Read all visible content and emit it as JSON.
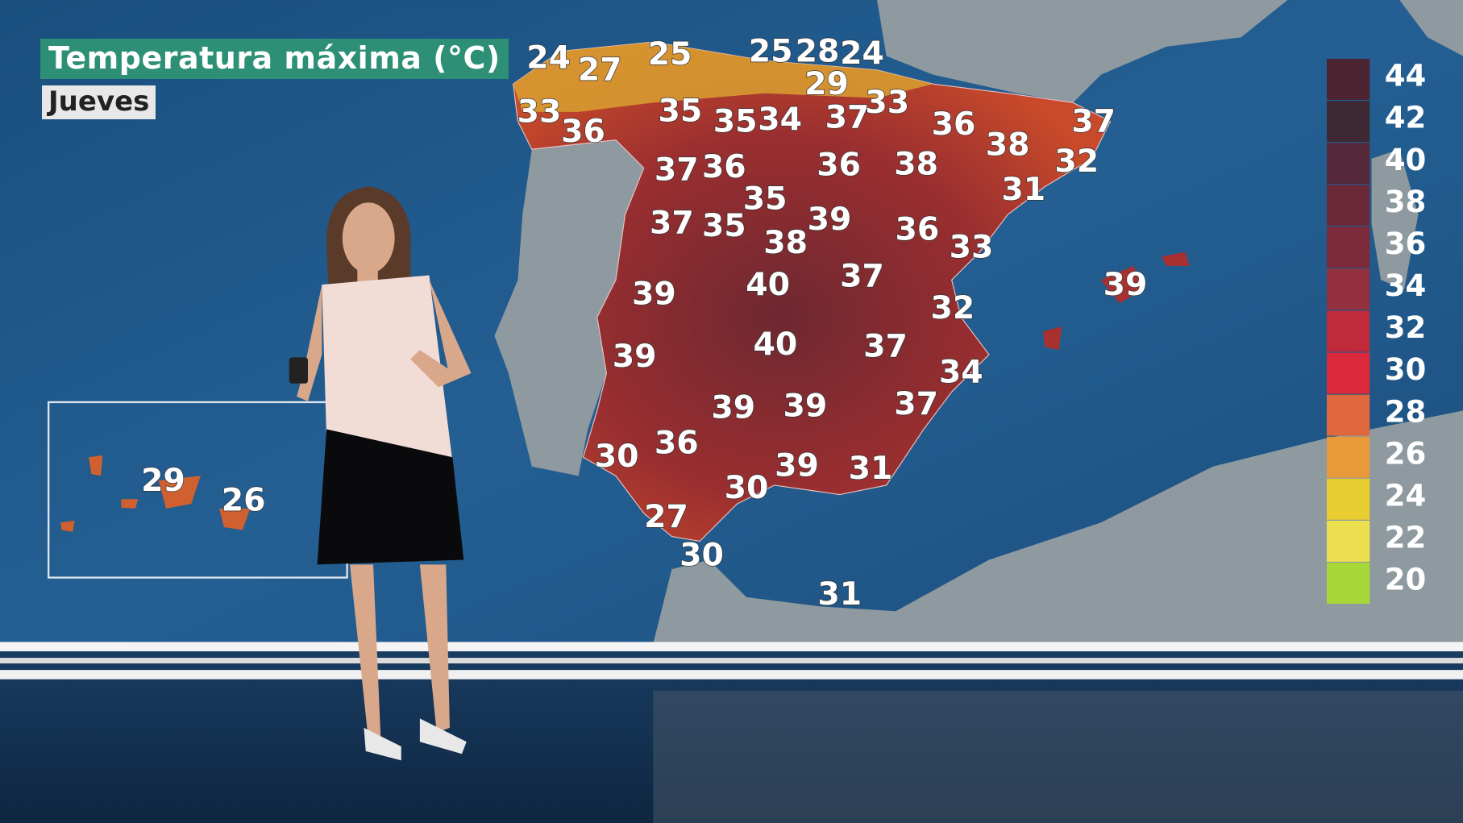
{
  "header": {
    "title": "Temperatura máxima (°C)",
    "day": "Jueves"
  },
  "colors": {
    "title_bg": "#2c8f76",
    "sea": "#1d5a8c",
    "land_other": "#8e9aa0"
  },
  "peninsula_temps": [
    "24",
    "27",
    "25",
    "25",
    "28",
    "24",
    "29",
    "33",
    "36",
    "35",
    "35",
    "34",
    "37",
    "33",
    "36",
    "38",
    "37",
    "32",
    "31",
    "37",
    "36",
    "36",
    "38",
    "35",
    "37",
    "35",
    "39",
    "38",
    "36",
    "33",
    "39",
    "39",
    "40",
    "37",
    "32",
    "39",
    "40",
    "37",
    "34",
    "39",
    "39",
    "37",
    "30",
    "36",
    "39",
    "31",
    "30",
    "27",
    "30",
    "31"
  ],
  "canarias_temps": [
    "29",
    "26"
  ],
  "legend": {
    "labels": [
      "44",
      "42",
      "40",
      "38",
      "36",
      "34",
      "32",
      "30",
      "28",
      "26",
      "24",
      "22",
      "20"
    ],
    "colors": [
      "#4a2430",
      "#3e2834",
      "#55283a",
      "#6a2838",
      "#7c2a3a",
      "#93303e",
      "#c02a3a",
      "#dc2a3c",
      "#e0683e",
      "#e89a3a",
      "#e8cc30",
      "#ece050",
      "#a8d838"
    ]
  }
}
